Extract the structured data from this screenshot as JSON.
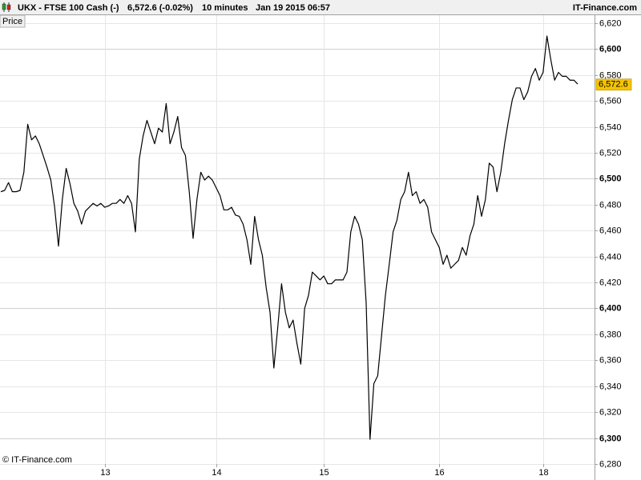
{
  "chart_data": {
    "type": "line",
    "title": "UKX - FTSE 100 Cash (-)",
    "quote": "6,572.6 (-0.02%)",
    "interval": "10 minutes",
    "datetime": "Jan 19 2015 06:57",
    "source": "IT-Finance.com",
    "y_label": "Price",
    "watermark": "© IT-Finance.com",
    "color": "#000000",
    "grid": true,
    "last_price": {
      "value": 6572.6,
      "label": "6,572.6"
    },
    "ylim": [
      6280,
      6625.5
    ],
    "yticks": [
      {
        "value": 6280,
        "label": "6,280"
      },
      {
        "value": 6300,
        "label": "6,300"
      },
      {
        "value": 6320,
        "label": "6,320"
      },
      {
        "value": 6340,
        "label": "6,340"
      },
      {
        "value": 6360,
        "label": "6,360"
      },
      {
        "value": 6380,
        "label": "6,380"
      },
      {
        "value": 6400,
        "label": "6,400"
      },
      {
        "value": 6420,
        "label": "6,420"
      },
      {
        "value": 6440,
        "label": "6,440"
      },
      {
        "value": 6460,
        "label": "6,460"
      },
      {
        "value": 6480,
        "label": "6,480"
      },
      {
        "value": 6500,
        "label": "6,500"
      },
      {
        "value": 6520,
        "label": "6,520"
      },
      {
        "value": 6540,
        "label": "6,540"
      },
      {
        "value": 6560,
        "label": "6,560"
      },
      {
        "value": 6580,
        "label": "6,580"
      },
      {
        "value": 6600,
        "label": "6,600"
      },
      {
        "value": 6620,
        "label": "6,620"
      }
    ],
    "categories": [
      null,
      null,
      null,
      null,
      null,
      null,
      null,
      null,
      null,
      null,
      null,
      null,
      null,
      null,
      null,
      null,
      null,
      null,
      null,
      null,
      null,
      null,
      null,
      null,
      null,
      null,
      null,
      "13",
      null,
      null,
      null,
      null,
      null,
      null,
      null,
      null,
      null,
      null,
      null,
      null,
      null,
      null,
      null,
      null,
      null,
      null,
      null,
      null,
      null,
      null,
      null,
      null,
      null,
      null,
      null,
      null,
      "14",
      null,
      null,
      null,
      null,
      null,
      null,
      null,
      null,
      null,
      null,
      null,
      null,
      null,
      null,
      null,
      null,
      null,
      null,
      null,
      null,
      null,
      null,
      null,
      null,
      null,
      null,
      null,
      "15",
      null,
      null,
      null,
      null,
      null,
      null,
      null,
      null,
      null,
      null,
      null,
      null,
      null,
      null,
      null,
      null,
      null,
      null,
      null,
      null,
      null,
      null,
      null,
      null,
      null,
      null,
      null,
      null,
      null,
      "16",
      null,
      null,
      null,
      null,
      null,
      null,
      null,
      null,
      null,
      null,
      null,
      null,
      null,
      null,
      null,
      null,
      null,
      null,
      null,
      null,
      null,
      null,
      null,
      null,
      null,
      null,
      "18",
      null,
      null,
      null,
      null,
      null,
      null,
      null,
      null,
      null
    ],
    "values": [
      6490,
      6491,
      6497,
      6490,
      6490,
      6491,
      6505,
      6542,
      6530,
      6533,
      6527,
      6518,
      6509,
      6499,
      6478,
      6448,
      6484,
      6508,
      6496,
      6481,
      6475,
      6465,
      6475,
      6478,
      6481,
      6479,
      6481,
      6478,
      6479,
      6481,
      6481,
      6484,
      6481,
      6487,
      6481,
      6459,
      6515,
      6533,
      6545,
      6536,
      6527,
      6539,
      6536,
      6558,
      6527,
      6536,
      6548,
      6524,
      6518,
      6490,
      6454,
      6484,
      6505,
      6499,
      6502,
      6499,
      6493,
      6487,
      6476,
      6476,
      6478,
      6472,
      6471,
      6465,
      6453,
      6434,
      6471,
      6453,
      6441,
      6416,
      6397,
      6354,
      6385,
      6419,
      6397,
      6385,
      6391,
      6373,
      6357,
      6400,
      6410,
      6428,
      6425,
      6422,
      6425,
      6419,
      6419,
      6422,
      6422,
      6422,
      6428,
      6459,
      6471,
      6465,
      6453,
      6404,
      6299,
      6342,
      6348,
      6379,
      6410,
      6434,
      6459,
      6468,
      6484,
      6490,
      6505,
      6487,
      6490,
      6481,
      6484,
      6478,
      6459,
      6453,
      6447,
      6434,
      6441,
      6431,
      6434,
      6437,
      6447,
      6441,
      6456,
      6465,
      6487,
      6471,
      6484,
      6512,
      6509,
      6490,
      6505,
      6527,
      6545,
      6561,
      6570,
      6570,
      6561,
      6567,
      6579,
      6585,
      6576,
      6582,
      6610,
      6592,
      6576,
      6582,
      6579,
      6579,
      6576,
      6576,
      6573
    ]
  }
}
